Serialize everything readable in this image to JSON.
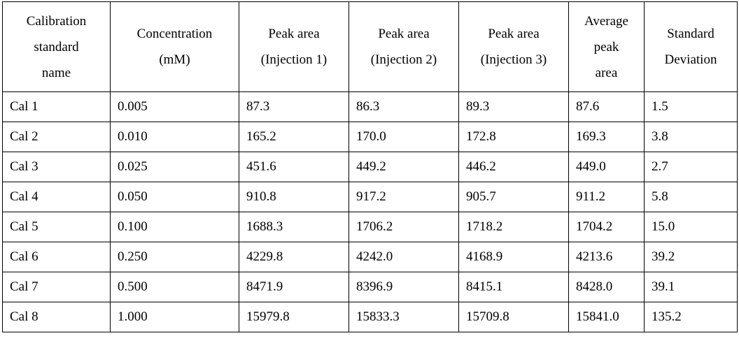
{
  "table": {
    "headers": [
      [
        "Calibration",
        "standard",
        "name"
      ],
      [
        "Concentration",
        "(mM)"
      ],
      [
        "Peak area",
        "(Injection 1)"
      ],
      [
        "Peak area",
        "(Injection 2)"
      ],
      [
        "Peak area",
        "(Injection 3)"
      ],
      [
        "Average",
        "peak",
        "area"
      ],
      [
        "Standard",
        "Deviation"
      ]
    ],
    "rows": [
      [
        "Cal 1",
        "0.005",
        "87.3",
        "86.3",
        "89.3",
        "87.6",
        "1.5"
      ],
      [
        "Cal 2",
        "0.010",
        "165.2",
        "170.0",
        "172.8",
        "169.3",
        "3.8"
      ],
      [
        "Cal 3",
        "0.025",
        "451.6",
        "449.2",
        "446.2",
        "449.0",
        "2.7"
      ],
      [
        "Cal 4",
        "0.050",
        "910.8",
        "917.2",
        "905.7",
        "911.2",
        "5.8"
      ],
      [
        "Cal 5",
        "0.100",
        "1688.3",
        "1706.2",
        "1718.2",
        "1704.2",
        "15.0"
      ],
      [
        "Cal 6",
        "0.250",
        "4229.8",
        "4242.0",
        "4168.9",
        "4213.6",
        "39.2"
      ],
      [
        "Cal 7",
        "0.500",
        "8471.9",
        "8396.9",
        "8415.1",
        "8428.0",
        "39.1"
      ],
      [
        "Cal 8",
        "1.000",
        "15979.8",
        "15833.3",
        "15709.8",
        "15841.0",
        "135.2"
      ]
    ]
  }
}
